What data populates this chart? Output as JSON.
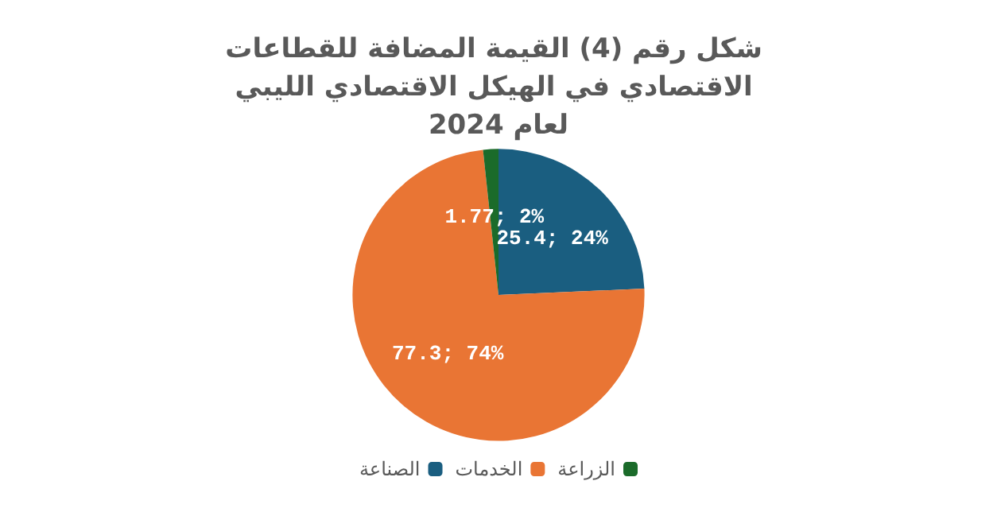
{
  "chart_data": {
    "type": "pie",
    "title": "شكل رقم (4) القيمة المضافة للقطاعات الاقتصادي في الهيكل الاقتصادي الليبي لعام 2024",
    "categories": [
      "الصناعة",
      "الخدمات",
      "الزراعة"
    ],
    "values": [
      25.4,
      77.3,
      1.77
    ],
    "colors": [
      "#1a5e80",
      "#e97534",
      "#1b6b2a"
    ],
    "value_labels": [
      "25.4; 24%",
      "77.3; 74%",
      "1.77; 2%"
    ],
    "legend": "bottom"
  }
}
